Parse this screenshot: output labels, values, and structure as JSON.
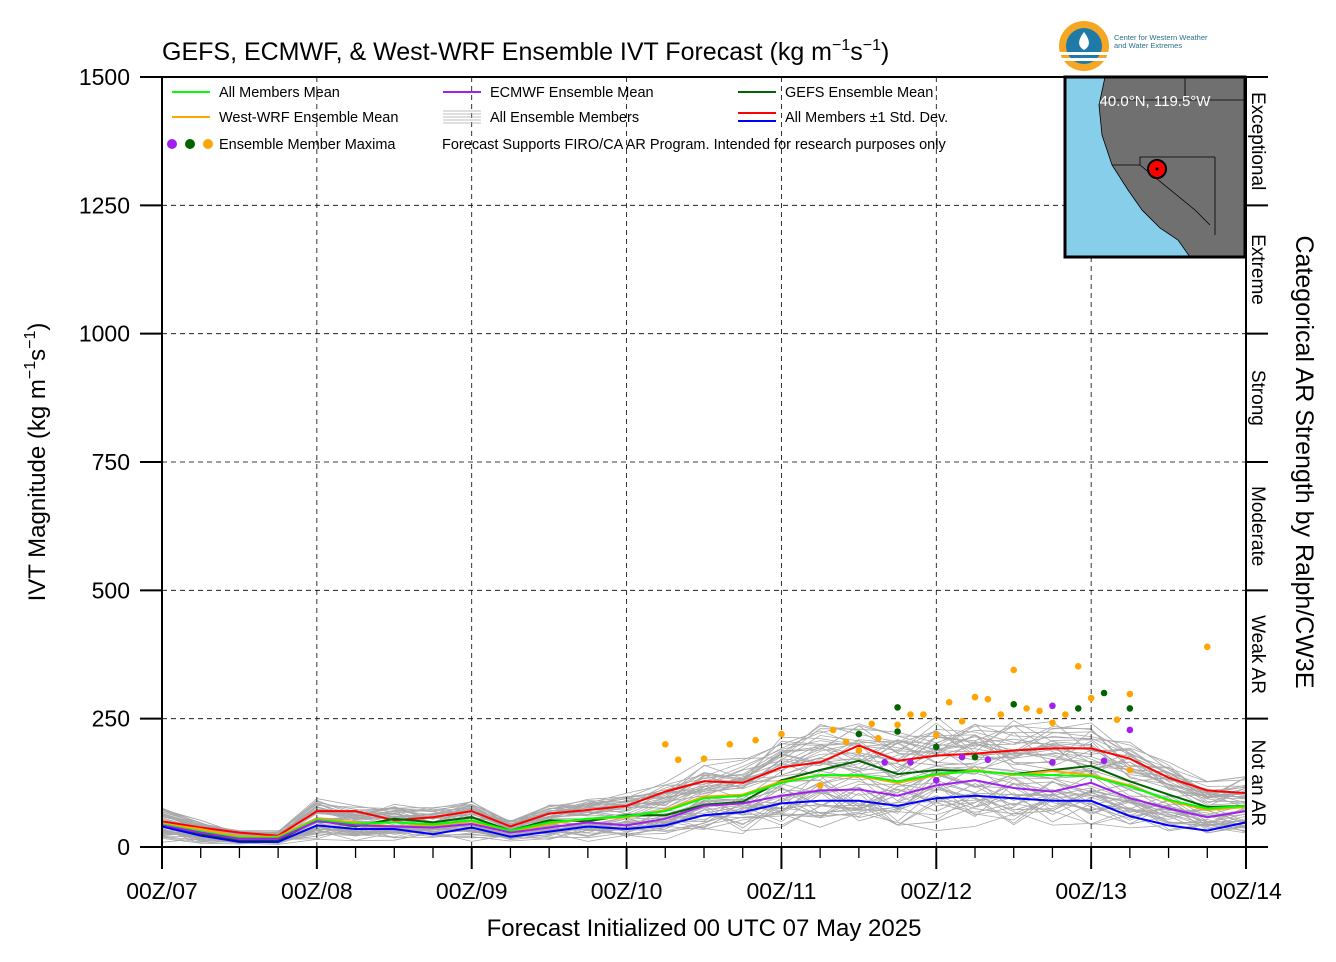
{
  "header": {
    "title": "GEFS, ECMWF, & West-WRF Ensemble IVT Forecast (kg m",
    "title_sup1": "−1",
    "title_s": "s",
    "title_sup2": "−1",
    "title_close": ")"
  },
  "logo": {
    "line1": "Center for Western Weather",
    "line2": "and Water Extremes",
    "colors": {
      "orange": "#f5a623",
      "blue": "#1f7aa8",
      "teal": "#2a9fc0"
    }
  },
  "inset_map": {
    "location_label": "40.0°N, 119.5°W",
    "ocean_color": "#87ceeb",
    "land_color": "#707070"
  },
  "legend": {
    "items": [
      {
        "label": "All Members Mean",
        "color": "#00ff00",
        "kind": "line"
      },
      {
        "label": "ECMWF Ensemble Mean",
        "color": "#a020f0",
        "kind": "line"
      },
      {
        "label": "GEFS Ensemble Mean",
        "color": "#006400",
        "kind": "line"
      },
      {
        "label": "West-WRF Ensemble Mean",
        "color": "#ffa500",
        "kind": "line"
      },
      {
        "label": "All Ensemble Members",
        "color": "#aaaaaa",
        "kind": "multiline"
      },
      {
        "label": "All Members ±1 Std. Dev.",
        "color": "#ff0000",
        "color2": "#0000ff",
        "kind": "double"
      },
      {
        "label": "Ensemble Member Maxima",
        "kind": "dots",
        "dot_colors": [
          "#a020f0",
          "#006400",
          "#ffa500"
        ]
      }
    ],
    "disclaimer": "Forecast Supports FIRO/CA AR Program. Intended for research purposes only"
  },
  "chart_data": {
    "type": "line",
    "title": "GEFS, ECMWF, & West-WRF Ensemble IVT Forecast (kg m−1s−1)",
    "xlabel": "Forecast Initialized 00 UTC 07 May 2025",
    "ylabel": "IVT Magnitude (kg m⁻¹s⁻¹)",
    "ylabel_parts": {
      "main": "IVT Magnitude (kg m",
      "sup1": "−1",
      "s": "s",
      "sup2": "−1",
      "close": ")"
    },
    "y2label": "Categorical AR Strength by Ralph/CW3E",
    "xlim": [
      0,
      168
    ],
    "ylim": [
      0,
      1500
    ],
    "yticks": [
      0,
      250,
      500,
      750,
      1000,
      1250,
      1500
    ],
    "xticks": [
      {
        "hour": 0,
        "label": "00Z/07"
      },
      {
        "hour": 24,
        "label": "00Z/08"
      },
      {
        "hour": 48,
        "label": "00Z/09"
      },
      {
        "hour": 72,
        "label": "00Z/10"
      },
      {
        "hour": 96,
        "label": "00Z/11"
      },
      {
        "hour": 120,
        "label": "00Z/12"
      },
      {
        "hour": 144,
        "label": "00Z/13"
      },
      {
        "hour": 168,
        "label": "00Z/14"
      }
    ],
    "categories": [
      {
        "name": "Not an AR",
        "range": [
          0,
          250
        ]
      },
      {
        "name": "Weak AR",
        "range": [
          250,
          500
        ]
      },
      {
        "name": "Moderate",
        "range": [
          500,
          750
        ]
      },
      {
        "name": "Strong",
        "range": [
          750,
          1000
        ]
      },
      {
        "name": "Extreme",
        "range": [
          1000,
          1250
        ]
      },
      {
        "name": "Exceptional",
        "range": [
          1250,
          1500
        ]
      }
    ],
    "grid": true,
    "legend_position": "top-left",
    "x": [
      0,
      6,
      12,
      18,
      24,
      30,
      36,
      42,
      48,
      54,
      60,
      66,
      72,
      78,
      84,
      90,
      96,
      102,
      108,
      114,
      120,
      126,
      132,
      138,
      144,
      150,
      156,
      162,
      168
    ],
    "series": [
      {
        "name": "All Members ±1 Std. Dev.",
        "color": "#ff0000",
        "values": [
          50,
          38,
          28,
          22,
          70,
          70,
          52,
          58,
          70,
          40,
          65,
          72,
          80,
          108,
          128,
          125,
          155,
          165,
          198,
          168,
          178,
          182,
          188,
          192,
          192,
          172,
          135,
          110,
          105
        ]
      },
      {
        "name": "GEFS Ensemble Mean",
        "color": "#006400",
        "values": [
          42,
          25,
          12,
          12,
          52,
          40,
          55,
          48,
          58,
          32,
          52,
          50,
          62,
          62,
          82,
          88,
          130,
          150,
          168,
          142,
          150,
          148,
          142,
          150,
          158,
          128,
          102,
          78,
          80
        ]
      },
      {
        "name": "West-WRF Ensemble Mean",
        "color": "#ffa500",
        "values": [
          45,
          35,
          20,
          20,
          55,
          48,
          40,
          42,
          50,
          30,
          45,
          55,
          58,
          72,
          98,
          102,
          128,
          140,
          138,
          125,
          140,
          150,
          140,
          148,
          140,
          120,
          90,
          72,
          78
        ]
      },
      {
        "name": "All Members Mean",
        "color": "#00ff00",
        "values": [
          44,
          30,
          18,
          18,
          53,
          45,
          48,
          44,
          52,
          32,
          48,
          55,
          60,
          70,
          95,
          100,
          125,
          140,
          140,
          128,
          142,
          148,
          142,
          140,
          138,
          118,
          92,
          75,
          80
        ]
      },
      {
        "name": "ECMWF Ensemble Mean",
        "color": "#a020f0",
        "values": [
          42,
          28,
          16,
          16,
          50,
          42,
          40,
          38,
          45,
          28,
          38,
          48,
          42,
          55,
          80,
          85,
          100,
          110,
          112,
          100,
          120,
          130,
          115,
          108,
          125,
          95,
          75,
          58,
          70
        ]
      },
      {
        "name": "",
        "color": "#0000ff",
        "values": [
          40,
          22,
          10,
          10,
          42,
          35,
          35,
          25,
          38,
          20,
          30,
          40,
          35,
          42,
          62,
          68,
          85,
          90,
          90,
          80,
          95,
          100,
          95,
          90,
          90,
          60,
          42,
          32,
          48
        ]
      }
    ],
    "members": {
      "count": 60,
      "color": "#a8a8a8"
    },
    "maxima": [
      {
        "x": 102,
        "y": 120,
        "color": "#ffa500"
      },
      {
        "x": 104,
        "y": 228,
        "color": "#ffa500"
      },
      {
        "x": 106,
        "y": 205,
        "color": "#ffa500"
      },
      {
        "x": 108,
        "y": 220,
        "color": "#006400"
      },
      {
        "x": 108,
        "y": 188,
        "color": "#ffa500"
      },
      {
        "x": 110,
        "y": 240,
        "color": "#ffa500"
      },
      {
        "x": 111,
        "y": 212,
        "color": "#ffa500"
      },
      {
        "x": 112,
        "y": 165,
        "color": "#a020f0"
      },
      {
        "x": 114,
        "y": 272,
        "color": "#006400"
      },
      {
        "x": 114,
        "y": 238,
        "color": "#ffa500"
      },
      {
        "x": 114,
        "y": 225,
        "color": "#006400"
      },
      {
        "x": 116,
        "y": 258,
        "color": "#ffa500"
      },
      {
        "x": 118,
        "y": 258,
        "color": "#ffa500"
      },
      {
        "x": 120,
        "y": 218,
        "color": "#ffa500"
      },
      {
        "x": 122,
        "y": 282,
        "color": "#ffa500"
      },
      {
        "x": 124,
        "y": 245,
        "color": "#ffa500"
      },
      {
        "x": 126,
        "y": 292,
        "color": "#ffa500"
      },
      {
        "x": 128,
        "y": 288,
        "color": "#ffa500"
      },
      {
        "x": 130,
        "y": 258,
        "color": "#ffa500"
      },
      {
        "x": 132,
        "y": 345,
        "color": "#ffa500"
      },
      {
        "x": 132,
        "y": 278,
        "color": "#006400"
      },
      {
        "x": 134,
        "y": 270,
        "color": "#ffa500"
      },
      {
        "x": 136,
        "y": 265,
        "color": "#ffa500"
      },
      {
        "x": 138,
        "y": 242,
        "color": "#ffa500"
      },
      {
        "x": 140,
        "y": 258,
        "color": "#ffa500"
      },
      {
        "x": 142,
        "y": 352,
        "color": "#ffa500"
      },
      {
        "x": 142,
        "y": 270,
        "color": "#006400"
      },
      {
        "x": 144,
        "y": 290,
        "color": "#ffa500"
      },
      {
        "x": 146,
        "y": 300,
        "color": "#006400"
      },
      {
        "x": 146,
        "y": 168,
        "color": "#a020f0"
      },
      {
        "x": 148,
        "y": 248,
        "color": "#ffa500"
      },
      {
        "x": 150,
        "y": 298,
        "color": "#ffa500"
      },
      {
        "x": 150,
        "y": 270,
        "color": "#006400"
      },
      {
        "x": 150,
        "y": 228,
        "color": "#a020f0"
      },
      {
        "x": 150,
        "y": 150,
        "color": "#ffa500"
      },
      {
        "x": 162,
        "y": 390,
        "color": "#ffa500"
      },
      {
        "x": 96,
        "y": 220,
        "color": "#ffa500"
      },
      {
        "x": 92,
        "y": 208,
        "color": "#ffa500"
      },
      {
        "x": 88,
        "y": 200,
        "color": "#ffa500"
      },
      {
        "x": 84,
        "y": 172,
        "color": "#ffa500"
      },
      {
        "x": 80,
        "y": 170,
        "color": "#ffa500"
      },
      {
        "x": 78,
        "y": 200,
        "color": "#ffa500"
      },
      {
        "x": 120,
        "y": 130,
        "color": "#a020f0"
      },
      {
        "x": 124,
        "y": 175,
        "color": "#a020f0"
      },
      {
        "x": 128,
        "y": 170,
        "color": "#a020f0"
      },
      {
        "x": 138,
        "y": 165,
        "color": "#a020f0"
      },
      {
        "x": 138,
        "y": 275,
        "color": "#a020f0"
      },
      {
        "x": 116,
        "y": 165,
        "color": "#a020f0"
      },
      {
        "x": 120,
        "y": 195,
        "color": "#006400"
      },
      {
        "x": 126,
        "y": 175,
        "color": "#006400"
      }
    ]
  }
}
